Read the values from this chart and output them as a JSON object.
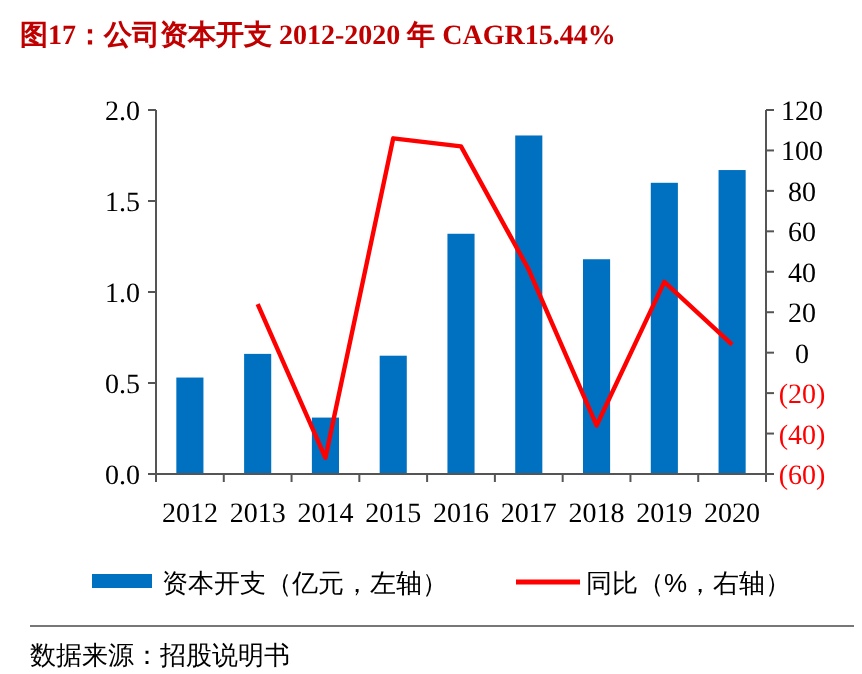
{
  "chart_data": {
    "type": "bar",
    "title": "图17：公司资本开支 2012-2020 年 CAGR15.44%",
    "categories": [
      "2012",
      "2013",
      "2014",
      "2015",
      "2016",
      "2017",
      "2018",
      "2019",
      "2020"
    ],
    "series": [
      {
        "name": "资本开支（亿元，左轴）",
        "color": "#0070c0",
        "values": [
          0.53,
          0.66,
          0.31,
          0.65,
          1.32,
          1.86,
          1.18,
          1.6,
          1.67
        ]
      },
      {
        "name": "同比（%，右轴）",
        "type": "line",
        "axis": "y2",
        "color": "#ff0000",
        "values": [
          null,
          24,
          -52,
          106,
          102,
          41,
          -36,
          35,
          4
        ]
      }
    ],
    "ylim": [
      0,
      2.0
    ],
    "yticks": [
      {
        "value": 0,
        "label": "0.0"
      },
      {
        "value": 0.5,
        "label": "0.5"
      },
      {
        "value": 1.0,
        "label": "1.0"
      },
      {
        "value": 1.5,
        "label": "1.5"
      },
      {
        "value": 2.0,
        "label": "2.0"
      }
    ],
    "y2lim": [
      -60,
      120
    ],
    "y2ticks": [
      {
        "value": -60,
        "label": "(60)"
      },
      {
        "value": -40,
        "label": "(40)"
      },
      {
        "value": -20,
        "label": "(20)"
      },
      0,
      20,
      40,
      60,
      80,
      100,
      120
    ],
    "legend": "bottom",
    "grid": false,
    "marker": "none",
    "line_style": "solid",
    "annotations": [
      "数据来源：招股说明书"
    ]
  }
}
